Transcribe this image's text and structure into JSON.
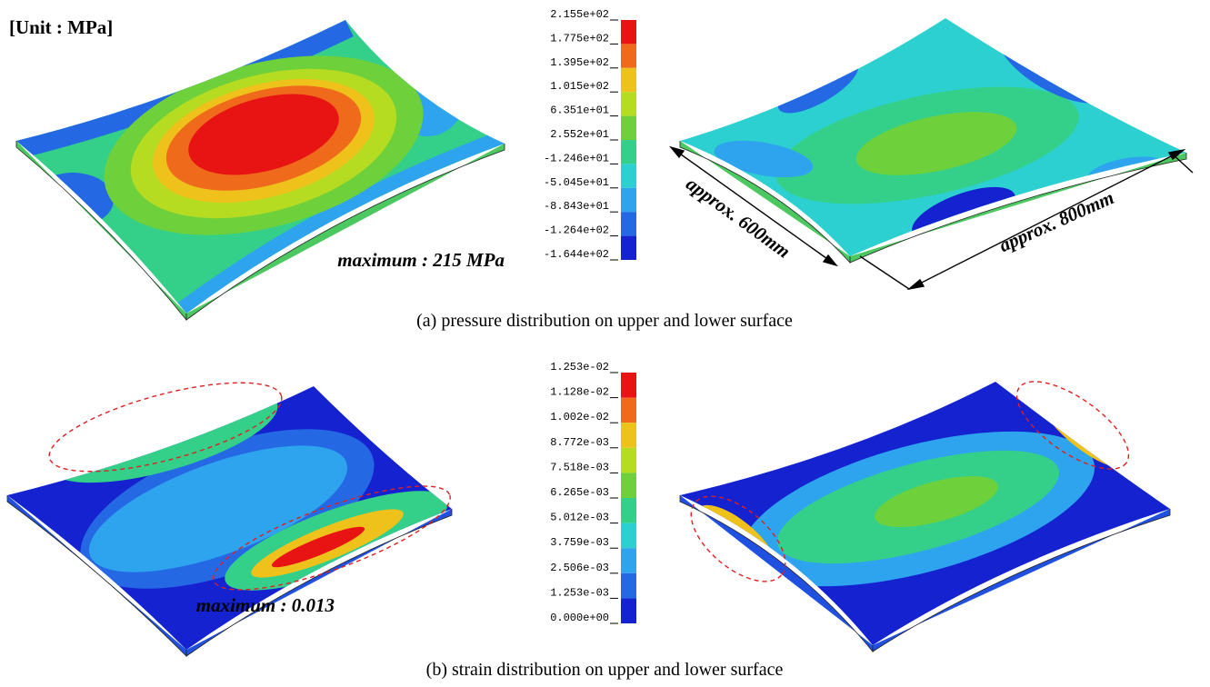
{
  "unit_label": "[Unit : MPa]",
  "panels": [
    {
      "legend": {
        "labels": [
          "2.155e+02",
          "1.775e+02",
          "1.395e+02",
          "1.015e+02",
          "6.351e+01",
          "2.552e+01",
          "-1.246e+01",
          "-5.045e+01",
          "-8.843e+01",
          "-1.264e+02",
          "-1.644e+02"
        ],
        "colors": [
          "#e81414",
          "#f06a1c",
          "#eec21a",
          "#b6dc22",
          "#6ed03a",
          "#34d08a",
          "#2cd0d0",
          "#2ea4ee",
          "#2468e4",
          "#1422d0"
        ]
      },
      "maximum": "maximum : 215 MPa",
      "dimensions": [
        "approx. 600mm",
        "approx. 800mm"
      ],
      "caption": "(a) pressure distribution on upper and lower surface"
    },
    {
      "legend": {
        "labels": [
          "1.253e-02",
          "1.128e-02",
          "1.002e-02",
          "8.772e-03",
          "7.518e-03",
          "6.265e-03",
          "5.012e-03",
          "3.759e-03",
          "2.506e-03",
          "1.253e-03",
          "0.000e+00"
        ],
        "colors": [
          "#e81414",
          "#f06a1c",
          "#eec21a",
          "#b6dc22",
          "#6ed03a",
          "#34d08a",
          "#2cd0d0",
          "#2ea4ee",
          "#2468e4",
          "#1422d0"
        ]
      },
      "maximum": "maximum : 0.013",
      "caption": "(b) strain distribution on upper and lower surface"
    }
  ]
}
